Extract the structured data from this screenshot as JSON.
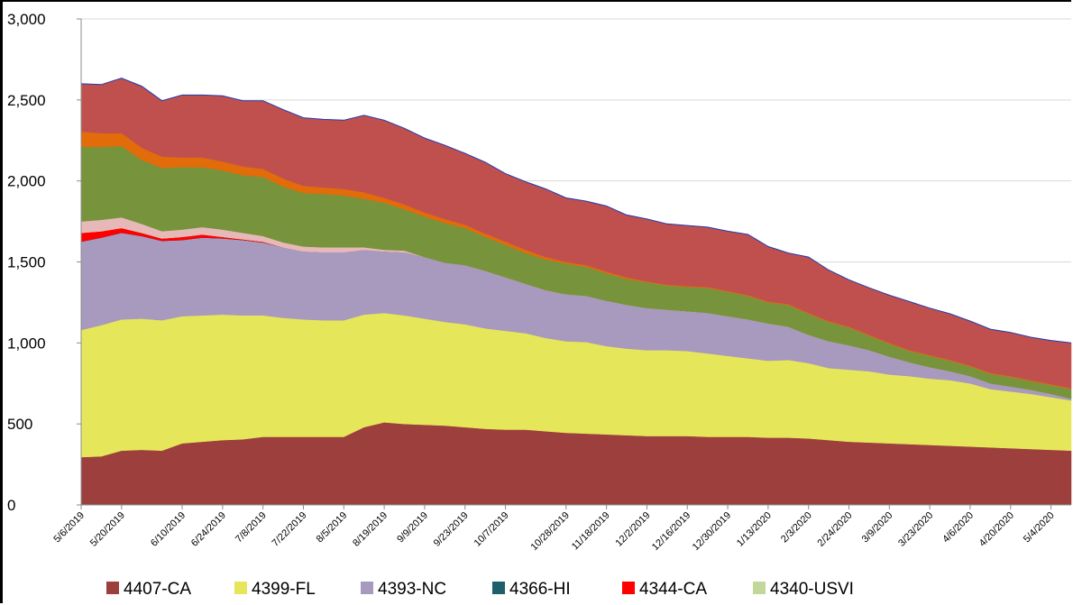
{
  "chart_data": {
    "type": "area",
    "stacked": true,
    "title": "",
    "xlabel": "",
    "ylabel": "",
    "ylim": [
      0,
      3000
    ],
    "y_ticks": [
      "0",
      "500",
      "1,000",
      "1,500",
      "2,000",
      "2,500",
      "3,000"
    ],
    "y_tick_values": [
      0,
      500,
      1000,
      1500,
      2000,
      2500,
      3000
    ],
    "grid": "horizontal",
    "legend_position": "bottom",
    "x": [
      "5/6/2019",
      "5/13/2019",
      "5/20/2019",
      "5/27/2019",
      "6/3/2019",
      "6/10/2019",
      "6/17/2019",
      "6/24/2019",
      "7/1/2019",
      "7/8/2019",
      "7/15/2019",
      "7/22/2019",
      "7/29/2019",
      "8/5/2019",
      "8/12/2019",
      "8/19/2019",
      "8/26/2019",
      "9/9/2019",
      "9/16/2019",
      "9/23/2019",
      "9/30/2019",
      "10/7/2019",
      "10/14/2019",
      "10/21/2019",
      "10/28/2019",
      "11/4/2019",
      "11/18/2019",
      "11/25/2019",
      "12/2/2019",
      "12/9/2019",
      "12/16/2019",
      "12/23/2019",
      "12/30/2019",
      "1/6/2020",
      "1/13/2020",
      "1/20/2020",
      "2/3/2020",
      "2/10/2020",
      "2/24/2020",
      "3/2/2020",
      "3/9/2020",
      "3/16/2020",
      "3/23/2020",
      "3/30/2020",
      "4/6/2020",
      "4/13/2020",
      "4/20/2020",
      "4/27/2020",
      "5/4/2020",
      "5/11/2020"
    ],
    "x_tick_labels": [
      "5/6/2019",
      "5/20/2019",
      "6/10/2019",
      "6/24/2019",
      "7/8/2019",
      "7/22/2019",
      "8/5/2019",
      "8/19/2019",
      "9/9/2019",
      "9/23/2019",
      "10/7/2019",
      "10/28/2019",
      "11/18/2019",
      "12/2/2019",
      "12/16/2019",
      "12/30/2019",
      "1/13/2020",
      "2/3/2020",
      "2/24/2020",
      "3/9/2020",
      "3/23/2020",
      "4/6/2020",
      "4/20/2020",
      "5/4/2020"
    ],
    "series": [
      {
        "name": "4407-CA",
        "color": "#9c3f3d",
        "values": [
          295,
          300,
          335,
          340,
          335,
          380,
          390,
          400,
          405,
          420,
          420,
          420,
          420,
          420,
          480,
          510,
          500,
          495,
          490,
          480,
          470,
          465,
          465,
          455,
          445,
          440,
          435,
          430,
          425,
          425,
          425,
          420,
          420,
          420,
          415,
          415,
          410,
          400,
          390,
          385,
          380,
          375,
          370,
          365,
          360,
          355,
          350,
          345,
          340,
          335
        ]
      },
      {
        "name": "4399-FL",
        "color": "#e6e65a",
        "values": [
          785,
          810,
          810,
          810,
          805,
          785,
          780,
          775,
          765,
          750,
          735,
          725,
          720,
          720,
          695,
          675,
          670,
          655,
          640,
          635,
          620,
          610,
          595,
          575,
          565,
          565,
          545,
          535,
          530,
          530,
          525,
          515,
          500,
          485,
          475,
          480,
          465,
          445,
          445,
          440,
          425,
          420,
          410,
          405,
          390,
          360,
          350,
          340,
          325,
          310
        ]
      },
      {
        "name": "4393-NC",
        "color": "#a899bf",
        "values": [
          545,
          540,
          535,
          510,
          490,
          470,
          480,
          470,
          465,
          450,
          435,
          420,
          420,
          420,
          400,
          380,
          390,
          380,
          365,
          365,
          355,
          330,
          305,
          295,
          290,
          285,
          280,
          270,
          260,
          250,
          245,
          250,
          245,
          240,
          230,
          205,
          175,
          165,
          150,
          130,
          110,
          85,
          70,
          55,
          45,
          35,
          30,
          25,
          20,
          10
        ]
      },
      {
        "name": "4366-HI",
        "color": "#1f5f6b",
        "values": [
          0,
          0,
          0,
          0,
          0,
          0,
          0,
          0,
          0,
          0,
          0,
          0,
          0,
          0,
          0,
          0,
          0,
          0,
          0,
          0,
          0,
          0,
          0,
          0,
          0,
          0,
          0,
          0,
          0,
          0,
          0,
          0,
          0,
          0,
          0,
          0,
          0,
          0,
          0,
          0,
          0,
          0,
          0,
          0,
          0,
          0,
          0,
          0,
          0,
          0
        ]
      },
      {
        "name": "4344-CA",
        "color": "#ff0000",
        "values": [
          55,
          40,
          30,
          20,
          15,
          20,
          20,
          10,
          5,
          5,
          0,
          0,
          0,
          0,
          0,
          0,
          0,
          0,
          0,
          0,
          0,
          0,
          0,
          0,
          0,
          0,
          0,
          0,
          0,
          0,
          0,
          0,
          0,
          0,
          0,
          0,
          0,
          0,
          0,
          0,
          0,
          0,
          0,
          0,
          0,
          0,
          0,
          0,
          0,
          0
        ]
      },
      {
        "name": "4340-USVI",
        "color": "#c4d79b",
        "values": [
          0,
          0,
          0,
          0,
          0,
          0,
          0,
          0,
          0,
          0,
          0,
          0,
          0,
          0,
          0,
          0,
          0,
          0,
          0,
          0,
          0,
          0,
          0,
          0,
          0,
          0,
          0,
          0,
          0,
          0,
          0,
          0,
          0,
          0,
          0,
          0,
          0,
          0,
          0,
          0,
          0,
          0,
          0,
          0,
          0,
          0,
          0,
          0,
          0,
          0
        ]
      },
      {
        "name": "",
        "color": "#e6b9b8",
        "values": [
          70,
          70,
          65,
          55,
          45,
          45,
          45,
          45,
          40,
          35,
          30,
          30,
          30,
          30,
          15,
          10,
          10,
          0,
          0,
          0,
          0,
          0,
          0,
          0,
          0,
          0,
          0,
          0,
          0,
          0,
          0,
          0,
          0,
          0,
          0,
          0,
          0,
          0,
          0,
          0,
          0,
          0,
          0,
          0,
          0,
          0,
          0,
          0,
          0,
          0
        ]
      },
      {
        "name": "",
        "color": "#77933c",
        "values": [
          460,
          450,
          440,
          395,
          390,
          385,
          370,
          365,
          355,
          365,
          345,
          330,
          330,
          320,
          300,
          290,
          255,
          250,
          245,
          230,
          210,
          200,
          190,
          190,
          190,
          180,
          170,
          160,
          160,
          150,
          150,
          155,
          150,
          145,
          130,
          135,
          130,
          120,
          110,
          90,
          80,
          70,
          70,
          65,
          60,
          60,
          60,
          55,
          55,
          60
        ]
      },
      {
        "name": "",
        "color": "#e26b0a",
        "values": [
          95,
          85,
          80,
          75,
          70,
          60,
          60,
          55,
          55,
          50,
          50,
          45,
          40,
          40,
          40,
          30,
          30,
          25,
          25,
          20,
          20,
          20,
          20,
          15,
          10,
          10,
          10,
          10,
          5,
          5,
          5,
          5,
          5,
          5,
          5,
          5,
          5,
          5,
          5,
          5,
          5,
          5,
          5,
          5,
          5,
          5,
          5,
          5,
          5,
          5
        ]
      },
      {
        "name": "",
        "color": "#c0504d",
        "values": [
          295,
          300,
          340,
          380,
          345,
          385,
          385,
          405,
          405,
          420,
          425,
          420,
          420,
          425,
          475,
          480,
          470,
          460,
          455,
          440,
          440,
          420,
          420,
          420,
          395,
          395,
          405,
          385,
          385,
          375,
          375,
          370,
          370,
          375,
          340,
          315,
          345,
          315,
          290,
          290,
          295,
          300,
          290,
          285,
          275,
          270,
          270,
          265,
          270,
          280
        ]
      }
    ]
  }
}
